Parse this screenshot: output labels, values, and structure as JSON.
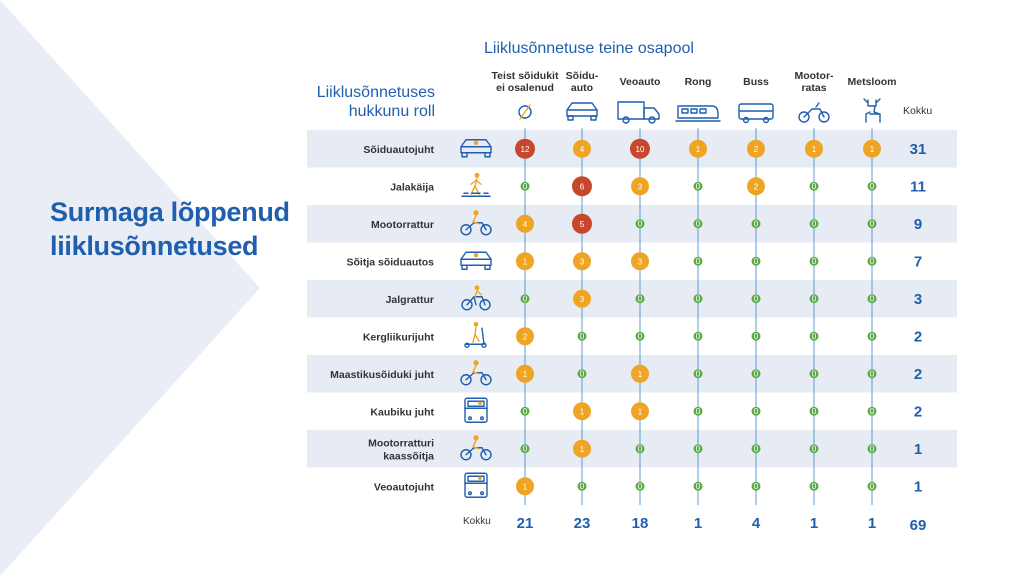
{
  "side_title": [
    "Surmaga lõppenud",
    "liiklusõnnetused"
  ],
  "super_header": "Liiklusõnnetuse teine osapool",
  "row_header": [
    "Liiklusõnnetuses",
    "hukkunu roll"
  ],
  "total_label": "Kokku",
  "colors": {
    "accent": "#1f5fae",
    "band": "#e6ebf4",
    "line": "#5b9bd5",
    "zero": "#5aaa46",
    "low": "#f0a424",
    "high": "#c8472c"
  },
  "chart_data": {
    "type": "table",
    "columns": [
      {
        "label": [
          "Teist sõidukit",
          "ei osalenud"
        ],
        "icon": "compass-icon"
      },
      {
        "label": [
          "Sõidu-",
          "auto"
        ],
        "icon": "car-icon"
      },
      {
        "label": [
          "Veoauto"
        ],
        "icon": "truck-icon"
      },
      {
        "label": [
          "Rong"
        ],
        "icon": "train-icon"
      },
      {
        "label": [
          "Buss"
        ],
        "icon": "bus-icon"
      },
      {
        "label": [
          "Mootor-",
          "ratas"
        ],
        "icon": "motorcycle-icon"
      },
      {
        "label": [
          "Metsloom"
        ],
        "icon": "deer-icon"
      }
    ],
    "rows": [
      {
        "label": [
          "Sõiduautojuht"
        ],
        "icon": "car-driver-icon",
        "values": [
          12,
          4,
          10,
          1,
          2,
          1,
          1
        ],
        "total": 31
      },
      {
        "label": [
          "Jalakäija"
        ],
        "icon": "pedestrian-icon",
        "values": [
          0,
          6,
          3,
          0,
          2,
          0,
          0
        ],
        "total": 11
      },
      {
        "label": [
          "Mootorrattur"
        ],
        "icon": "motorcyclist-icon",
        "values": [
          4,
          5,
          0,
          0,
          0,
          0,
          0
        ],
        "total": 9
      },
      {
        "label": [
          "Sõitja sõiduautos"
        ],
        "icon": "car-passenger-icon",
        "values": [
          1,
          3,
          3,
          0,
          0,
          0,
          0
        ],
        "total": 7
      },
      {
        "label": [
          "Jalgrattur"
        ],
        "icon": "cyclist-icon",
        "values": [
          0,
          3,
          0,
          0,
          0,
          0,
          0
        ],
        "total": 3
      },
      {
        "label": [
          "Kergliikurijuht"
        ],
        "icon": "scooter-icon",
        "values": [
          2,
          0,
          0,
          0,
          0,
          0,
          0
        ],
        "total": 2
      },
      {
        "label": [
          "Maastikusõiduki juht"
        ],
        "icon": "atv-icon",
        "values": [
          1,
          0,
          1,
          0,
          0,
          0,
          0
        ],
        "total": 2
      },
      {
        "label": [
          "Kaubiku juht"
        ],
        "icon": "van-icon",
        "values": [
          0,
          1,
          1,
          0,
          0,
          0,
          0
        ],
        "total": 2
      },
      {
        "label": [
          "Mootorratturi",
          "kaassõitja"
        ],
        "icon": "motorcycle-passenger-icon",
        "values": [
          0,
          1,
          0,
          0,
          0,
          0,
          0
        ],
        "total": 1
      },
      {
        "label": [
          "Veoautojuht"
        ],
        "icon": "truck-driver-icon",
        "values": [
          1,
          0,
          0,
          0,
          0,
          0,
          0
        ],
        "total": 1
      }
    ],
    "column_totals": [
      21,
      23,
      18,
      1,
      4,
      1,
      1
    ],
    "grand_total": 69
  }
}
